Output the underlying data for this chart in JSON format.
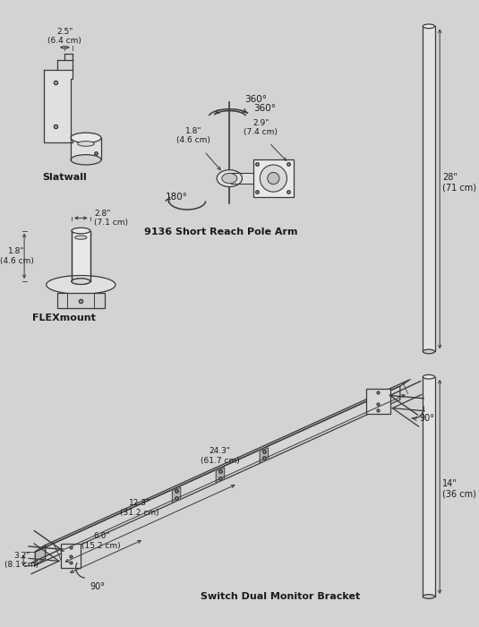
{
  "bg_color": "#d3d3d3",
  "line_color": "#3a3a3a",
  "text_color": "#1a1a1a",
  "fig_width": 5.35,
  "fig_height": 7.0,
  "labels": {
    "slatwall": "Slatwall",
    "flexmount": "FLEXmount",
    "pole_arm": "9136 Short Reach Pole Arm",
    "bracket": "Switch Dual Monitor Bracket"
  },
  "dims": {
    "slatwall_w": "2.5\"\n(6.4 cm)",
    "flex_h": "1.8\"\n(4.6 cm)",
    "flex_w": "2.8\"\n(7.1 cm)",
    "arm_h": "1.8\"\n(4.6 cm)",
    "arm_w": "2.9\"\n(7.4 cm)",
    "pole_top": "28\"\n(71 cm)",
    "pole_bot": "14\"\n(36 cm)",
    "br_243": "24.3\"\n(61.7 cm)",
    "br_123": "12.3\"\n(31.2 cm)",
    "br_60": "6.0\"\n(15.2 cm)",
    "br_32": "3.2\"\n(8.1 cm)"
  },
  "rotations": {
    "r360a": "360°",
    "r360b": "360°",
    "r180": "180°",
    "r90a": "90°",
    "r90b": "90°"
  }
}
